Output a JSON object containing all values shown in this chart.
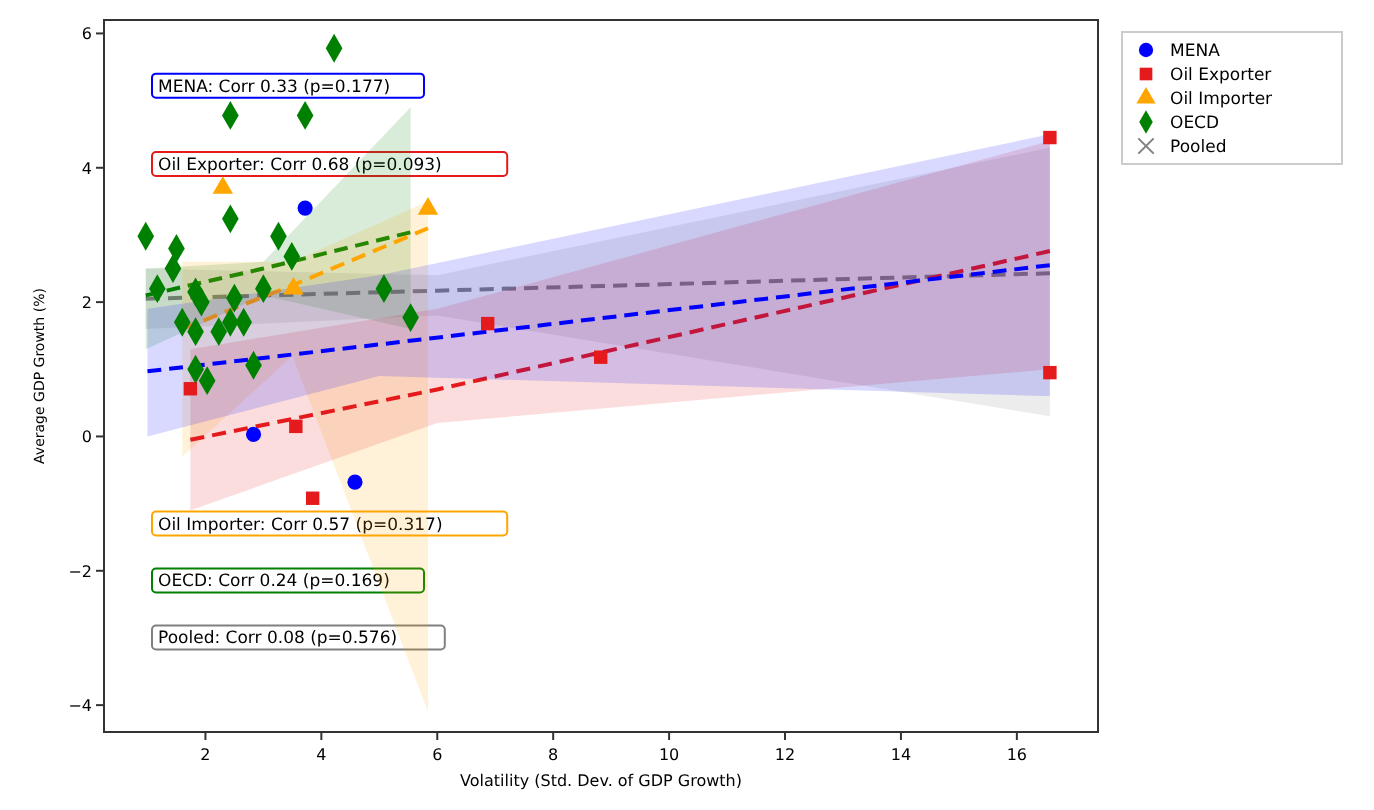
{
  "chart_data": {
    "type": "scatter",
    "xlabel": "Volatility (Std. Dev. of GDP Growth)",
    "ylabel": "Average GDP Growth (%)",
    "xlim": [
      0.25,
      17.4
    ],
    "ylim": [
      -4.4,
      6.2
    ],
    "xticks": [
      2,
      4,
      6,
      8,
      10,
      12,
      14,
      16
    ],
    "yticks": [
      {
        "value": -4,
        "label": "−4"
      },
      {
        "value": -2,
        "label": "−2"
      },
      0,
      2,
      4,
      6
    ],
    "legend": "top right",
    "grid": false,
    "series": [
      {
        "name": "MENA",
        "marker": "circle",
        "color": "#0000ff",
        "x": [
          2.83,
          4.58,
          3.72
        ],
        "values": [
          0.03,
          -0.68,
          3.4
        ]
      },
      {
        "name": "Oil Exporter",
        "marker": "square",
        "color": "#e41a1c",
        "x": [
          16.57,
          16.57,
          6.87,
          8.82,
          3.85,
          1.74,
          3.56
        ],
        "values": [
          4.45,
          0.95,
          1.68,
          1.18,
          -0.92,
          0.71,
          0.15
        ]
      },
      {
        "name": "Oil Importer",
        "marker": "triangle",
        "color": "#ffa500",
        "x": [
          5.84,
          3.52,
          2.3
        ],
        "values": [
          3.39,
          2.2,
          3.7
        ]
      },
      {
        "name": "OECD",
        "marker": "diamond",
        "color": "#008000",
        "x": [
          4.22,
          2.43,
          3.72,
          2.43,
          0.97,
          1.5,
          3.26,
          3.49,
          1.44,
          1.17,
          1.83,
          3.0,
          2.5,
          5.08,
          5.54,
          1.6,
          1.83,
          2.23,
          2.43,
          2.66,
          1.93,
          2.83,
          1.83,
          2.03
        ],
        "values": [
          5.78,
          4.78,
          4.78,
          3.24,
          2.98,
          2.8,
          2.98,
          2.68,
          2.5,
          2.2,
          2.15,
          2.2,
          2.06,
          2.2,
          1.77,
          1.7,
          1.56,
          1.56,
          1.7,
          1.7,
          2.0,
          1.06,
          1.0,
          0.83
        ]
      },
      {
        "type": "line",
        "color": "#0000ff",
        "line_style": "dashed",
        "x": [
          1.0,
          5,
          16.57
        ],
        "values": [
          0.97,
          1.37,
          2.55
        ],
        "lower": [
          0.0,
          0.9,
          0.6
        ],
        "upper": [
          1.9,
          2.4,
          4.5
        ]
      },
      {
        "type": "line",
        "color": "#e41a1c",
        "line_style": "dashed",
        "x": [
          1.74,
          6,
          16.57
        ],
        "values": [
          -0.05,
          0.7,
          2.76
        ],
        "lower": [
          -1.1,
          0.2,
          1.0
        ],
        "upper": [
          1.3,
          1.9,
          4.4
        ]
      },
      {
        "type": "line",
        "color": "#ffa500",
        "line_style": "dashed",
        "x": [
          1.6,
          3.5,
          5.84
        ],
        "values": [
          1.6,
          2.25,
          3.1
        ],
        "lower": [
          -0.3,
          1.2,
          -4.1
        ],
        "upper": [
          2.6,
          2.6,
          3.5
        ]
      },
      {
        "type": "line",
        "color": "#008000",
        "line_style": "dashed",
        "x": [
          0.97,
          3,
          5.54
        ],
        "values": [
          2.1,
          2.5,
          3.04
        ],
        "lower": [
          1.3,
          2.1,
          1.6
        ],
        "upper": [
          2.5,
          2.6,
          4.9
        ]
      },
      {
        "name": "Pooled",
        "type": "line",
        "color": "#808080",
        "line_style": "dashed",
        "x": [
          0.97,
          6,
          16.57
        ],
        "values": [
          2.05,
          2.17,
          2.43
        ],
        "lower": [
          1.6,
          1.8,
          0.3
        ],
        "upper": [
          2.5,
          2.4,
          4.3
        ]
      }
    ],
    "annotations": [
      "MENA: Corr 0.33 (p=0.177)",
      "Oil Exporter: Corr 0.68 (p=0.093)",
      "Oil Importer: Corr 0.57 (p=0.317)",
      "OECD: Corr 0.24 (p=0.169)",
      "Pooled: Corr 0.08 (p=0.576)"
    ]
  }
}
